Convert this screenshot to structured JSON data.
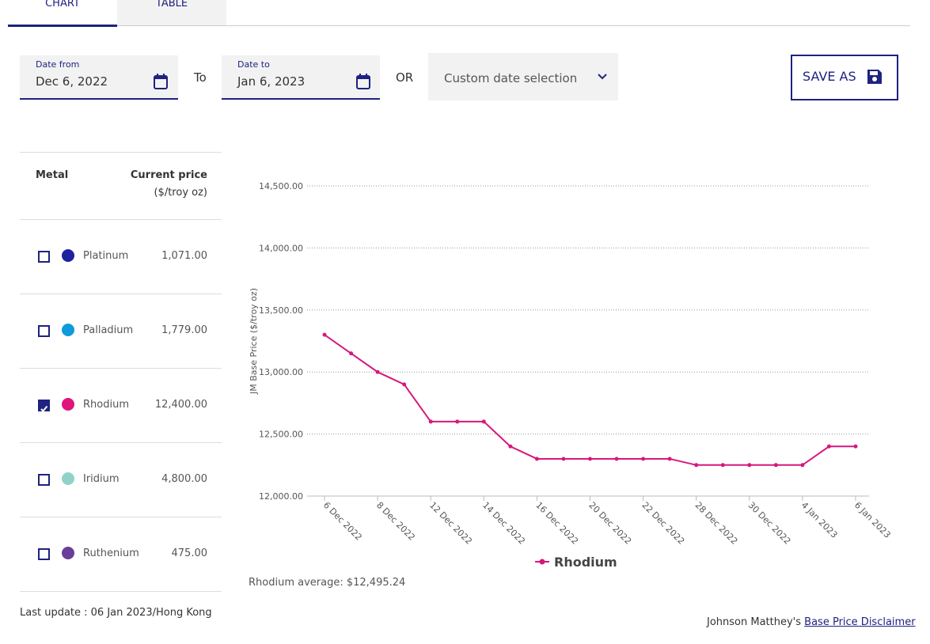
{
  "tabs": [
    "CHART",
    "TABLE"
  ],
  "date_from": {
    "label": "Date from",
    "value": "Dec 6, 2022"
  },
  "to_label": "To",
  "date_to": {
    "label": "Date to",
    "value": "Jan 6, 2023"
  },
  "or_label": "OR",
  "date_select": "Custom date selection",
  "save_button": "SAVE AS",
  "table": {
    "headers": [
      "Metal",
      "Current price",
      "($/troy oz)"
    ],
    "rows": [
      {
        "name": "Platinum",
        "price": "1,071.00",
        "color": "#1e22a0",
        "checked": false
      },
      {
        "name": "Palladium",
        "price": "1,779.00",
        "color": "#0e9bd9",
        "checked": false
      },
      {
        "name": "Rhodium",
        "price": "12,400.00",
        "color": "#e0147a",
        "checked": true
      },
      {
        "name": "Iridium",
        "price": "4,800.00",
        "color": "#8fd3c8",
        "checked": false
      },
      {
        "name": "Ruthenium",
        "price": "475.00",
        "color": "#6a3d9a",
        "checked": false
      }
    ]
  },
  "last_update": "Last update : 06 Jan 2023/Hong Kong",
  "average": "Rhodium average: $12,495.24",
  "disclaimer": {
    "text": "Johnson Matthey's",
    "link": "Base Price Disclaimer"
  },
  "chart_data": {
    "type": "line",
    "y_label": "JM Base Price ($/troy oz)",
    "categories": [
      "6 Dec 2022",
      null,
      "8 Dec 2022",
      null,
      "12 Dec 2022",
      null,
      "14 Dec 2022",
      null,
      "16 Dec 2022",
      null,
      "20 Dec 2022",
      null,
      "22 Dec 2022",
      null,
      "28 Dec 2022",
      null,
      "30 Dec 2022",
      null,
      "4 Jan 2023",
      null,
      "6 Jan 2023"
    ],
    "series": [
      {
        "name": "Rhodium",
        "color": "#d6187d",
        "values": [
          13300,
          13150,
          13000,
          12900,
          12600,
          12600,
          12600,
          12400,
          12300,
          12300,
          12300,
          12300,
          12300,
          12300,
          12250,
          12250,
          12250,
          12250,
          12250,
          12400,
          12400
        ]
      }
    ],
    "ylim": [
      12000,
      14500
    ],
    "yticks": [
      {
        "value": 12000,
        "label": "12,000.00"
      },
      {
        "value": 12500,
        "label": "12,500.00"
      },
      {
        "value": 13000,
        "label": "13,000.00"
      },
      {
        "value": 13500,
        "label": "13,500.00"
      },
      {
        "value": 14000,
        "label": "14,000.00"
      },
      {
        "value": 14500,
        "label": "14,500.00"
      }
    ],
    "grid": true
  }
}
